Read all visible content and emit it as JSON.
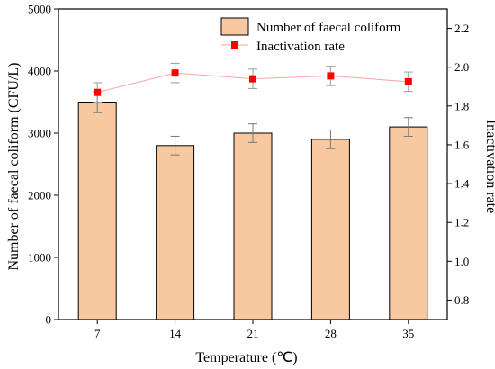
{
  "chart_data": {
    "type": "bar",
    "categories": [
      "7",
      "14",
      "21",
      "28",
      "35"
    ],
    "series": [
      {
        "name": "Number of faecal coliform",
        "type": "bar",
        "axis": "left",
        "values": [
          3500,
          2800,
          3000,
          2900,
          3100
        ],
        "errors": [
          170,
          150,
          150,
          150,
          150
        ],
        "color": "#f8c9a0"
      },
      {
        "name": "Inactivation rate",
        "type": "line",
        "axis": "right",
        "values": [
          1.87,
          1.97,
          1.94,
          1.955,
          1.925
        ],
        "errors": [
          0.05,
          0.05,
          0.05,
          0.05,
          0.05
        ],
        "color": "#ff0000",
        "line_color": "#f4a5a5"
      }
    ],
    "xlabel": "Temperature (℃)",
    "ylabel": "Number of faecal coliform (CFU/L)",
    "y2label": "Inactivation rate",
    "ylim": [
      0,
      5000
    ],
    "y2lim": [
      0.7,
      2.3
    ],
    "yticks": [
      0,
      1000,
      2000,
      3000,
      4000,
      5000
    ],
    "y2ticks": [
      0.8,
      1.0,
      1.2,
      1.4,
      1.6,
      1.8,
      2.0,
      2.2
    ],
    "legend_position": "top-right",
    "grid": false
  }
}
